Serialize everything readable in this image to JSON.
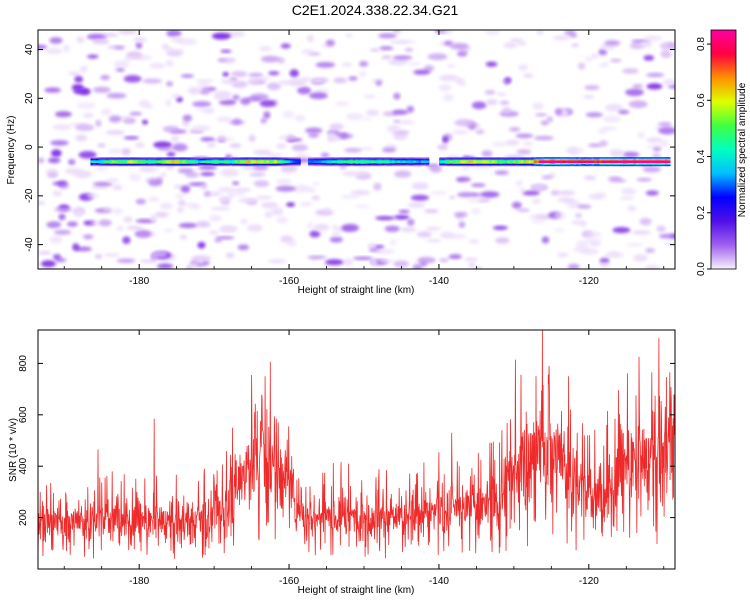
{
  "title": "C2E1.2024.338.22.34.G21",
  "chart_data": [
    {
      "type": "heatmap",
      "xlabel": "Height of straight line (km)",
      "ylabel": "Frequency (Hz)",
      "xlim": [
        -193.5,
        -108.5
      ],
      "ylim": [
        -50,
        48
      ],
      "xticks": [
        -180,
        -160,
        -140,
        -120
      ],
      "yticks": [
        -40,
        -20,
        0,
        20,
        40
      ],
      "ridge": {
        "frequency": -6,
        "x_start": -186.5,
        "x_end": -109.5,
        "gaps": [
          [
            -158.6,
            -157.8
          ],
          [
            -141.5,
            -140.3
          ]
        ],
        "amplitude_profile": [
          [
            -186,
            0.35
          ],
          [
            -184,
            0.45
          ],
          [
            -181,
            0.5
          ],
          [
            -178,
            0.4
          ],
          [
            -176,
            0.55
          ],
          [
            -174,
            0.5
          ],
          [
            -172,
            0.35
          ],
          [
            -170,
            0.45
          ],
          [
            -168,
            0.4
          ],
          [
            -166,
            0.55
          ],
          [
            -164,
            0.55
          ],
          [
            -162,
            0.5
          ],
          [
            -160,
            0.3
          ],
          [
            -158,
            0.25
          ],
          [
            -155,
            0.35
          ],
          [
            -151,
            0.45
          ],
          [
            -148,
            0.4
          ],
          [
            -145,
            0.35
          ],
          [
            -142,
            0.3
          ],
          [
            -139,
            0.45
          ],
          [
            -136,
            0.55
          ],
          [
            -133,
            0.5
          ],
          [
            -131,
            0.45
          ],
          [
            -128,
            0.55
          ],
          [
            -126,
            0.85
          ],
          [
            -123,
            0.75
          ],
          [
            -120,
            0.7
          ],
          [
            -117,
            0.8
          ],
          [
            -114,
            0.82
          ],
          [
            -111,
            0.85
          ],
          [
            -109.5,
            0.8
          ]
        ]
      },
      "noise_level": 0.12,
      "colorbar": {
        "label": "Normalized spectral amplitude",
        "range": [
          0,
          0.85
        ],
        "ticks": [
          0.0,
          0.2,
          0.4,
          0.6,
          0.8
        ],
        "tick_labels": [
          "0.0",
          "0.2",
          "0.4",
          "0.6",
          "0.8"
        ],
        "colormap": [
          "#f7f2fb",
          "#a060f0",
          "#5010e8",
          "#0000ff",
          "#00c0ff",
          "#00ffc0",
          "#40ff40",
          "#e0ff00",
          "#ff9000",
          "#ff0040",
          "#ff00a0"
        ]
      }
    },
    {
      "type": "line",
      "xlabel": "Height of straight line (km)",
      "ylabel": "SNR (10 * v/v)",
      "xlim": [
        -193.5,
        -108.5
      ],
      "ylim": [
        0,
        930
      ],
      "xticks": [
        -180,
        -160,
        -140,
        -120
      ],
      "yticks": [
        200,
        400,
        600,
        800
      ],
      "color": "#ee2a2a",
      "baseline_trend": [
        [
          -193.5,
          170
        ],
        [
          -190,
          185
        ],
        [
          -185,
          195
        ],
        [
          -180,
          190
        ],
        [
          -175,
          185
        ],
        [
          -170,
          200
        ],
        [
          -168,
          260
        ],
        [
          -166,
          380
        ],
        [
          -164,
          460
        ],
        [
          -162,
          440
        ],
        [
          -160,
          330
        ],
        [
          -158,
          200
        ],
        [
          -155,
          210
        ],
        [
          -150,
          210
        ],
        [
          -145,
          200
        ],
        [
          -140,
          230
        ],
        [
          -135,
          240
        ],
        [
          -132,
          260
        ],
        [
          -130,
          400
        ],
        [
          -128,
          430
        ],
        [
          -126,
          480
        ],
        [
          -124,
          450
        ],
        [
          -122,
          350
        ],
        [
          -120,
          280
        ],
        [
          -118,
          270
        ],
        [
          -116,
          380
        ],
        [
          -114,
          430
        ],
        [
          -112,
          420
        ],
        [
          -110,
          470
        ],
        [
          -108.5,
          560
        ]
      ],
      "peaks": [
        [
          -193.2,
          300
        ],
        [
          -185.5,
          465
        ],
        [
          -178,
          585
        ],
        [
          -171.3,
          390
        ],
        [
          -165,
          755
        ],
        [
          -163.2,
          750
        ],
        [
          -155.5,
          375
        ],
        [
          -147,
          385
        ],
        [
          -143,
          370
        ],
        [
          -138.3,
          530
        ],
        [
          -131.6,
          540
        ],
        [
          -129.8,
          815
        ],
        [
          -126.2,
          930
        ],
        [
          -125.3,
          790
        ],
        [
          -122.7,
          750
        ],
        [
          -117.5,
          615
        ],
        [
          -111.6,
          765
        ],
        [
          -109.2,
          765
        ]
      ]
    }
  ]
}
